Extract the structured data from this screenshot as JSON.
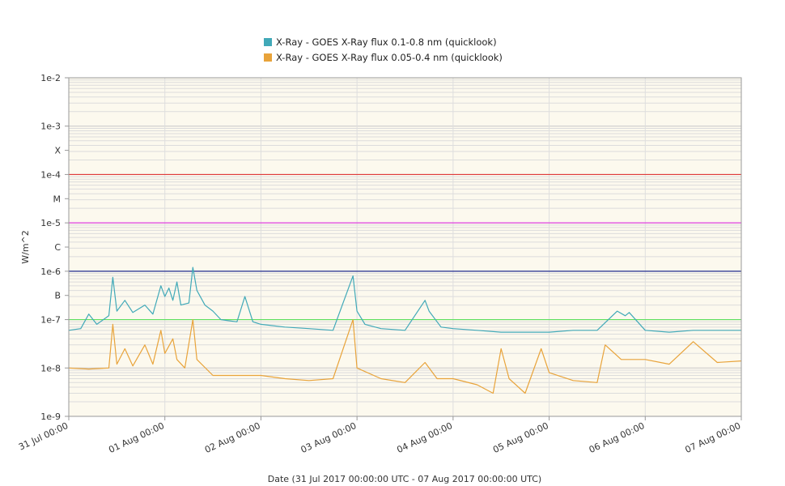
{
  "chart_data": {
    "type": "line",
    "title": "",
    "xlabel": "Date (31 Jul 2017 00:00:00 UTC - 07 Aug 2017 00:00:00 UTC)",
    "ylabel": "W/m^2",
    "y_scale": "log",
    "ylim": [
      1e-09,
      0.01
    ],
    "xlim": [
      "2017-07-31 00:00",
      "2017-08-07 00:00"
    ],
    "x_ticks": [
      "31 Jul 00:00",
      "01 Aug 00:00",
      "02 Aug 00:00",
      "03 Aug 00:00",
      "04 Aug 00:00",
      "05 Aug 00:00",
      "06 Aug 00:00",
      "07 Aug 00:00"
    ],
    "y_ticks": [
      {
        "label": "1e-2",
        "value": 0.01
      },
      {
        "label": "1e-3",
        "value": 0.001
      },
      {
        "label": "X",
        "value": 0.000316
      },
      {
        "label": "1e-4",
        "value": 0.0001
      },
      {
        "label": "M",
        "value": 3.16e-05
      },
      {
        "label": "1e-5",
        "value": 1e-05
      },
      {
        "label": "C",
        "value": 3.16e-06
      },
      {
        "label": "1e-6",
        "value": 1e-06
      },
      {
        "label": "B",
        "value": 3.16e-07
      },
      {
        "label": "1e-7",
        "value": 1e-07
      },
      {
        "label": "1e-8",
        "value": 1e-08
      },
      {
        "label": "1e-9",
        "value": 1e-09
      }
    ],
    "threshold_lines": [
      {
        "value": 0.0001,
        "color": "#e03b3b"
      },
      {
        "value": 1e-05,
        "color": "#e040e0"
      },
      {
        "value": 1e-06,
        "color": "#1f2a8f"
      },
      {
        "value": 1e-07,
        "color": "#5fe05f"
      }
    ],
    "grid": true,
    "legend_position": "top-center",
    "series": [
      {
        "name": "X-Ray - GOES X-Ray flux 0.1-0.8 nm (quicklook)",
        "color": "#41a9b8",
        "points": [
          [
            "2017-07-31 00:00",
            6e-08
          ],
          [
            "2017-07-31 03:00",
            6.5e-08
          ],
          [
            "2017-07-31 05:00",
            1.3e-07
          ],
          [
            "2017-07-31 07:00",
            8e-08
          ],
          [
            "2017-07-31 10:00",
            1.2e-07
          ],
          [
            "2017-07-31 11:00",
            7.5e-07
          ],
          [
            "2017-07-31 12:00",
            1.5e-07
          ],
          [
            "2017-07-31 14:00",
            2.5e-07
          ],
          [
            "2017-07-31 16:00",
            1.4e-07
          ],
          [
            "2017-07-31 19:00",
            2e-07
          ],
          [
            "2017-07-31 21:00",
            1.3e-07
          ],
          [
            "2017-07-31 23:00",
            5e-07
          ],
          [
            "2017-08-01 00:00",
            3e-07
          ],
          [
            "2017-08-01 01:00",
            4.5e-07
          ],
          [
            "2017-08-01 02:00",
            2.5e-07
          ],
          [
            "2017-08-01 03:00",
            6e-07
          ],
          [
            "2017-08-01 04:00",
            2e-07
          ],
          [
            "2017-08-01 06:00",
            2.2e-07
          ],
          [
            "2017-08-01 07:00",
            1.2e-06
          ],
          [
            "2017-08-01 08:00",
            4e-07
          ],
          [
            "2017-08-01 10:00",
            2e-07
          ],
          [
            "2017-08-01 12:00",
            1.5e-07
          ],
          [
            "2017-08-01 14:00",
            1e-07
          ],
          [
            "2017-08-01 18:00",
            9e-08
          ],
          [
            "2017-08-01 20:00",
            3e-07
          ],
          [
            "2017-08-01 22:00",
            9e-08
          ],
          [
            "2017-08-02 00:00",
            8e-08
          ],
          [
            "2017-08-02 06:00",
            7e-08
          ],
          [
            "2017-08-02 12:00",
            6.5e-08
          ],
          [
            "2017-08-02 18:00",
            6e-08
          ],
          [
            "2017-08-02 23:00",
            8e-07
          ],
          [
            "2017-08-03 00:00",
            1.5e-07
          ],
          [
            "2017-08-03 02:00",
            8e-08
          ],
          [
            "2017-08-03 06:00",
            6.5e-08
          ],
          [
            "2017-08-03 12:00",
            6e-08
          ],
          [
            "2017-08-03 17:00",
            2.5e-07
          ],
          [
            "2017-08-03 18:00",
            1.5e-07
          ],
          [
            "2017-08-03 21:00",
            7e-08
          ],
          [
            "2017-08-04 00:00",
            6.5e-08
          ],
          [
            "2017-08-04 06:00",
            6e-08
          ],
          [
            "2017-08-04 12:00",
            5.5e-08
          ],
          [
            "2017-08-04 18:00",
            5.5e-08
          ],
          [
            "2017-08-05 00:00",
            5.5e-08
          ],
          [
            "2017-08-05 06:00",
            6e-08
          ],
          [
            "2017-08-05 12:00",
            6e-08
          ],
          [
            "2017-08-05 17:00",
            1.5e-07
          ],
          [
            "2017-08-05 19:00",
            1.2e-07
          ],
          [
            "2017-08-05 20:00",
            1.4e-07
          ],
          [
            "2017-08-06 00:00",
            6e-08
          ],
          [
            "2017-08-06 06:00",
            5.5e-08
          ],
          [
            "2017-08-06 12:00",
            6e-08
          ],
          [
            "2017-08-06 18:00",
            6e-08
          ],
          [
            "2017-08-07 00:00",
            6e-08
          ]
        ]
      },
      {
        "name": "X-Ray - GOES X-Ray flux 0.05-0.4 nm (quicklook)",
        "color": "#e8a33a",
        "points": [
          [
            "2017-07-31 00:00",
            1e-08
          ],
          [
            "2017-07-31 05:00",
            9.5e-09
          ],
          [
            "2017-07-31 10:00",
            1e-08
          ],
          [
            "2017-07-31 11:00",
            8e-08
          ],
          [
            "2017-07-31 12:00",
            1.2e-08
          ],
          [
            "2017-07-31 14:00",
            2.5e-08
          ],
          [
            "2017-07-31 16:00",
            1.1e-08
          ],
          [
            "2017-07-31 19:00",
            3e-08
          ],
          [
            "2017-07-31 21:00",
            1.2e-08
          ],
          [
            "2017-07-31 23:00",
            6e-08
          ],
          [
            "2017-08-01 00:00",
            2e-08
          ],
          [
            "2017-08-01 02:00",
            4e-08
          ],
          [
            "2017-08-01 03:00",
            1.5e-08
          ],
          [
            "2017-08-01 05:00",
            1e-08
          ],
          [
            "2017-08-01 07:00",
            1e-07
          ],
          [
            "2017-08-01 08:00",
            1.5e-08
          ],
          [
            "2017-08-01 12:00",
            7e-09
          ],
          [
            "2017-08-01 18:00",
            7e-09
          ],
          [
            "2017-08-02 00:00",
            7e-09
          ],
          [
            "2017-08-02 06:00",
            6e-09
          ],
          [
            "2017-08-02 12:00",
            5.5e-09
          ],
          [
            "2017-08-02 18:00",
            6e-09
          ],
          [
            "2017-08-02 23:00",
            1e-07
          ],
          [
            "2017-08-03 00:00",
            1e-08
          ],
          [
            "2017-08-03 06:00",
            6e-09
          ],
          [
            "2017-08-03 12:00",
            5e-09
          ],
          [
            "2017-08-03 17:00",
            1.3e-08
          ],
          [
            "2017-08-03 20:00",
            6e-09
          ],
          [
            "2017-08-04 00:00",
            6e-09
          ],
          [
            "2017-08-04 06:00",
            4.5e-09
          ],
          [
            "2017-08-04 10:00",
            3e-09
          ],
          [
            "2017-08-04 12:00",
            2.5e-08
          ],
          [
            "2017-08-04 14:00",
            6e-09
          ],
          [
            "2017-08-04 18:00",
            3e-09
          ],
          [
            "2017-08-04 22:00",
            2.5e-08
          ],
          [
            "2017-08-05 00:00",
            8e-09
          ],
          [
            "2017-08-05 06:00",
            5.5e-09
          ],
          [
            "2017-08-05 12:00",
            5e-09
          ],
          [
            "2017-08-05 14:00",
            3e-08
          ],
          [
            "2017-08-05 18:00",
            1.5e-08
          ],
          [
            "2017-08-06 00:00",
            1.5e-08
          ],
          [
            "2017-08-06 06:00",
            1.2e-08
          ],
          [
            "2017-08-06 12:00",
            3.5e-08
          ],
          [
            "2017-08-06 18:00",
            1.3e-08
          ],
          [
            "2017-08-07 00:00",
            1.4e-08
          ]
        ]
      }
    ]
  }
}
